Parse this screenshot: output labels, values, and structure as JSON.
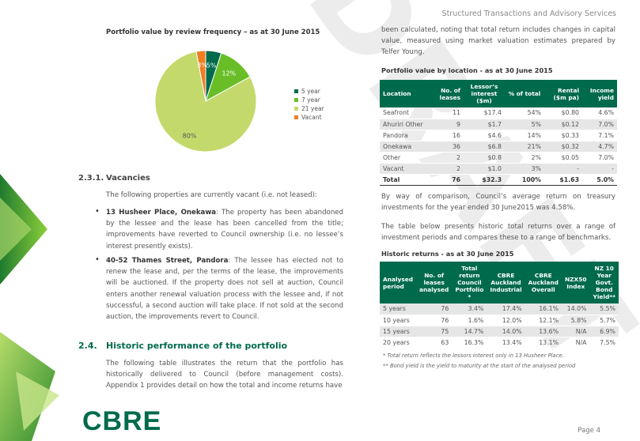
{
  "header": {
    "right_title": "Structured Transactions and Advisory Services"
  },
  "watermark": "DRAFT",
  "brand": {
    "logo_text": "CBRE"
  },
  "page_number": "Page 4",
  "left": {
    "figure_title": "Portfolio value by review frequency – as at 30 June 2015",
    "section_num": "2.3.1.",
    "section_title": "Vacancies",
    "intro": "The following properties are currently vacant (i.e. not leased):",
    "bullets": [
      {
        "bold": "13 Husheer Place, Onekawa",
        "text": ":  The property has been abandoned by the lessee and the lease has been cancelled from the title; improvements have reverted to Council ownership (i.e. no lessee’s interest presently exists)."
      },
      {
        "bold": "40-52 Thames Street, Pandora",
        "text": ":  The lessee has elected not to renew the lease and, per the terms of the lease, the improvements will be auctioned.  If the property does not sell at auction, Council enters another renewal valuation process with the lessee and, if not successful, a second auction will take place.  If not sold at the second auction, the improvements revert to Council."
      }
    ],
    "h2_num": "2.4.",
    "h2_title": "Historic performance of the portfolio",
    "h2_text": "The following table illustrates the return that the portfolio has historically delivered to Council (before management costs). Appendix 1 provides detail on how the total and income returns have"
  },
  "chart_data": {
    "type": "pie",
    "title": "Portfolio value by review frequency – as at 30 June 2015",
    "categories": [
      "5 year",
      "7 year",
      "21 year",
      "Vacant"
    ],
    "values": [
      5,
      12,
      80,
      3
    ],
    "labels": [
      "5%",
      "12%",
      "80%",
      "3%"
    ],
    "colors": [
      "#006a4d",
      "#69be28",
      "#c4d96b",
      "#ef7d22"
    ],
    "legend_position": "right"
  },
  "right": {
    "text_top": "been calculated, noting that total return includes changes in capital value, measured using market valuation estimates prepared by Telfer Young.",
    "table1_title": "Portfolio value by location - as at 30 June 2015",
    "table1": {
      "headers": [
        "Location",
        "No. of leases",
        "Lessor’s interest ($m)",
        "% of total",
        "Rental ($m pa)",
        "Income yield"
      ],
      "rows": [
        [
          "Seafront",
          "11",
          "$17.4",
          "54%",
          "$0.80",
          "4.6%"
        ],
        [
          "Ahuriri Other",
          "9",
          "$1.7",
          "5%",
          "$0.12",
          "7.0%"
        ],
        [
          "Pandora",
          "16",
          "$4.6",
          "14%",
          "$0.33",
          "7.1%"
        ],
        [
          "Onekawa",
          "36",
          "$6.8",
          "21%",
          "$0.32",
          "4.7%"
        ],
        [
          "Other",
          "2",
          "$0.8",
          "2%",
          "$0.05",
          "7.0%"
        ],
        [
          "Vacant",
          "2",
          "$1.0",
          "3%",
          "-",
          "-"
        ]
      ],
      "total": [
        "Total",
        "76",
        "$32.3",
        "100%",
        "$1.63",
        "5.0%"
      ]
    },
    "para1": "By way of comparison, Council’s average return on treasury investments for the year ended 30 June2015 was 4.58%.",
    "para2": "The table below presents historic total returns over a range of investment periods and compares these to a range of benchmarks.",
    "table2_title": "Historic returns - as at 30 June 2015",
    "table2": {
      "headers": [
        "Analysed period",
        "No. of leases analysed",
        "Total return Council Portfolio *",
        "CBRE Auckland Industrial",
        "CBRE Auckland Overall",
        "NZX50 Index",
        "NZ 10 Year Govt. Bond Yield**"
      ],
      "rows": [
        [
          "5 years",
          "76",
          "3.4%",
          "17.4%",
          "16.1%",
          "14.0%",
          "5.5%"
        ],
        [
          "10 years",
          "76",
          "1.6%",
          "12.0%",
          "12.1%",
          "5.8%",
          "5.7%"
        ],
        [
          "15 years",
          "75",
          "14.7%",
          "14.0%",
          "13.6%",
          "N/A",
          "6.9%"
        ],
        [
          "20 years",
          "63",
          "16.3%",
          "13.4%",
          "13.1%",
          "N/A",
          "7.5%"
        ]
      ]
    },
    "note1": "* Total return reflects the lessors interest only in 13 Husheer Place.",
    "note2": "** Bond yield is the yield to maturity at the start of the analysed period"
  }
}
